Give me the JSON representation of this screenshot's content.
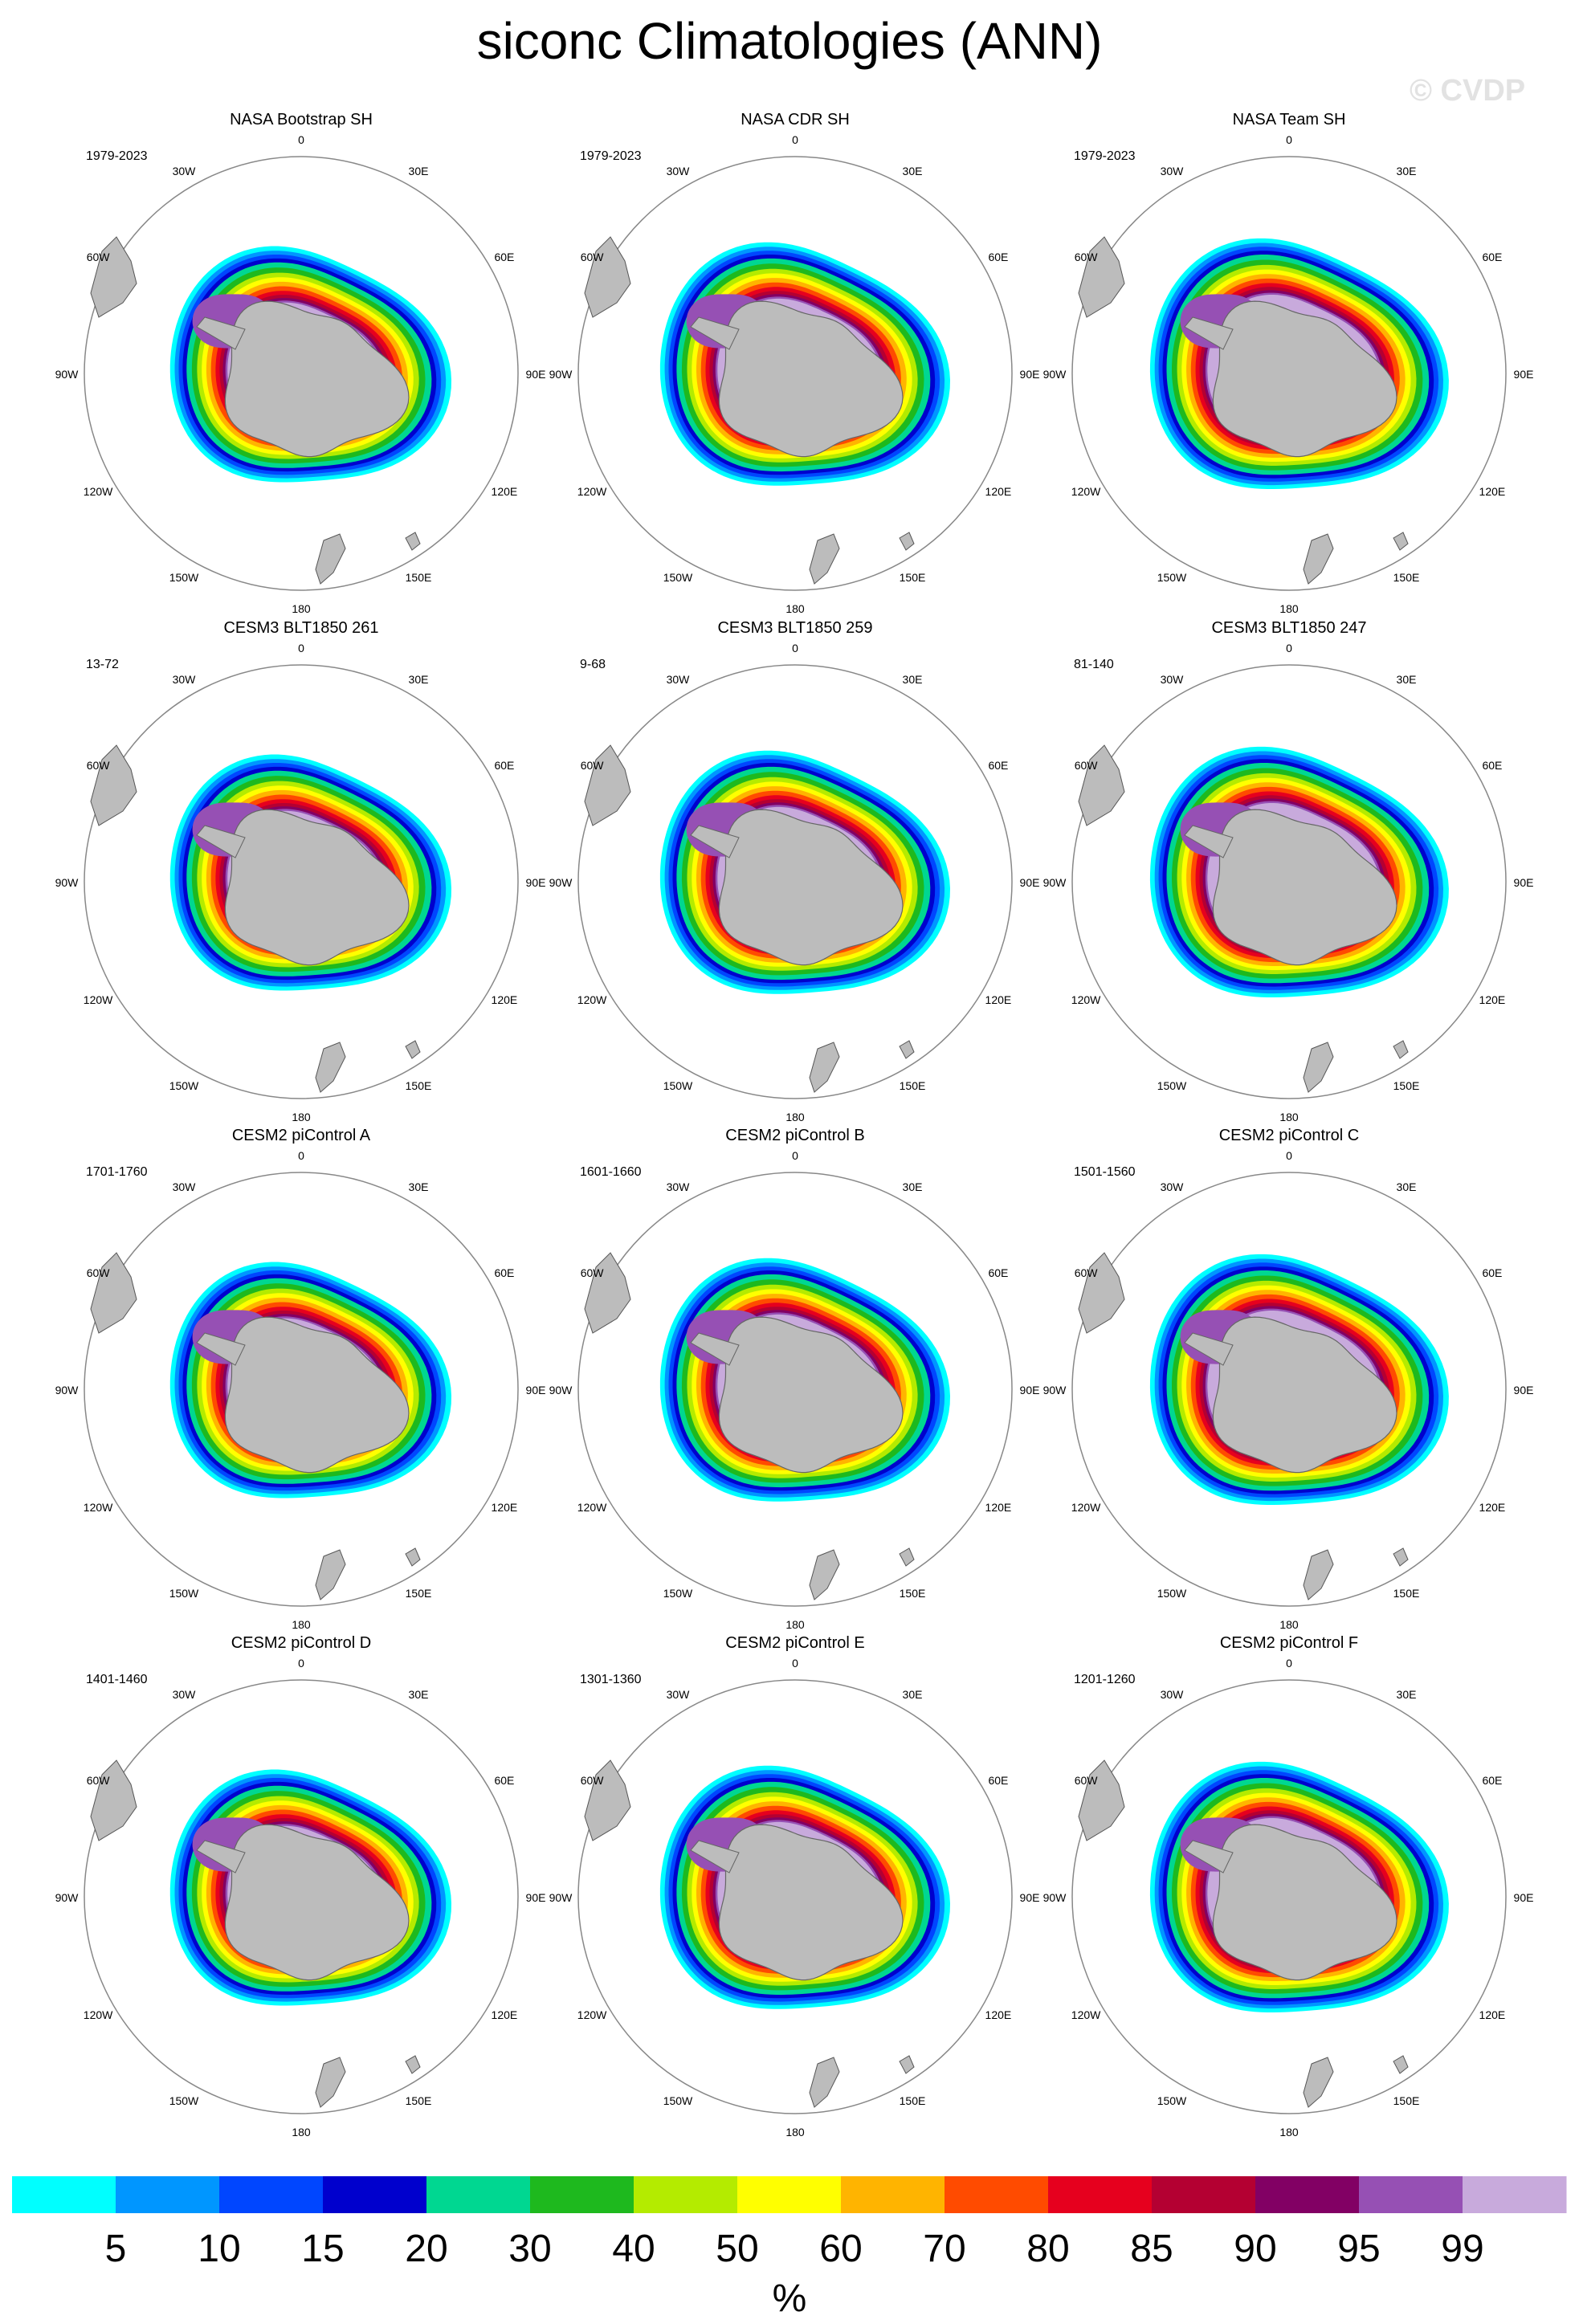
{
  "title": "siconc Climatologies (ANN)",
  "watermark": "© CVDP",
  "colors": {
    "land": "#bcbcbc",
    "levels": [
      "#00ffff",
      "#0096ff",
      "#0046ff",
      "#0000cd",
      "#00d791",
      "#1eb91e",
      "#b4eb00",
      "#ffff00",
      "#ffb400",
      "#ff4b00",
      "#e6001e",
      "#b40032",
      "#820064",
      "#9650b4",
      "#c8aadc"
    ]
  },
  "panels": [
    {
      "title": "NASA Bootstrap SH",
      "period": "1979-2023"
    },
    {
      "title": "NASA CDR SH",
      "period": "1979-2023"
    },
    {
      "title": "NASA Team SH",
      "period": "1979-2023"
    },
    {
      "title": "CESM3 BLT1850 261",
      "period": "13-72"
    },
    {
      "title": "CESM3 BLT1850 259",
      "period": "9-68"
    },
    {
      "title": "CESM3 BLT1850 247",
      "period": "81-140"
    },
    {
      "title": "CESM2 piControl A",
      "period": "1701-1760"
    },
    {
      "title": "CESM2 piControl B",
      "period": "1601-1660"
    },
    {
      "title": "CESM2 piControl C",
      "period": "1501-1560"
    },
    {
      "title": "CESM2 piControl D",
      "period": "1401-1460"
    },
    {
      "title": "CESM2 piControl E",
      "period": "1301-1360"
    },
    {
      "title": "CESM2 piControl F",
      "period": "1201-1260"
    }
  ],
  "longitude_labels": {
    "0": "0",
    "30E": "30E",
    "60E": "60E",
    "90E": "90E",
    "120E": "120E",
    "150E": "150E",
    "180": "180",
    "150W": "150W",
    "120W": "120W",
    "90W": "90W",
    "60W": "60W",
    "30W": "30W"
  },
  "colorbar": {
    "unit": "%",
    "labels": [
      "5",
      "10",
      "15",
      "20",
      "30",
      "40",
      "50",
      "60",
      "70",
      "80",
      "85",
      "90",
      "95",
      "99"
    ]
  }
}
